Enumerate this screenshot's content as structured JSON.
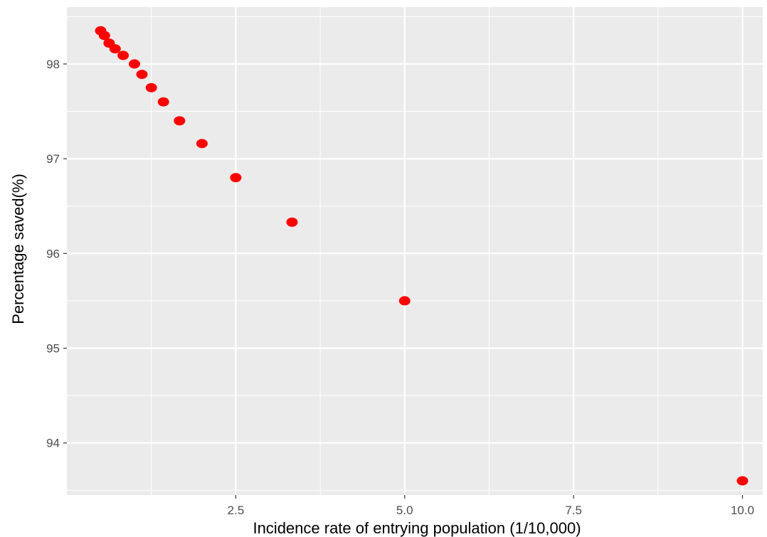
{
  "chart_data": {
    "type": "scatter",
    "title": "",
    "xlabel": "Incidence rate of entrying population (1/10,000)",
    "ylabel": "Percentage saved(%)",
    "xlim": [
      0.0,
      10.3
    ],
    "ylim": [
      93.45,
      98.6
    ],
    "x_ticks": [
      2.5,
      5.0,
      7.5,
      10.0
    ],
    "x_tick_labels": [
      "2.5",
      "5.0",
      "7.5",
      "10.0"
    ],
    "y_ticks": [
      94,
      95,
      96,
      97,
      98
    ],
    "y_tick_labels": [
      "94",
      "95",
      "96",
      "97",
      "98"
    ],
    "grid": true,
    "legend": "none",
    "colors": {
      "panel": "#ebebeb",
      "grid": "#ffffff",
      "point": "#ff0000"
    },
    "series": [
      {
        "x": [
          0.5,
          0.556,
          0.625,
          0.714,
          0.833,
          1.0,
          1.111,
          1.25,
          1.429,
          1.667,
          2.0,
          2.5,
          3.333,
          5.0,
          10.0
        ],
        "values": [
          98.35,
          98.3,
          98.22,
          98.16,
          98.09,
          98.0,
          97.89,
          97.75,
          97.6,
          97.4,
          97.16,
          96.8,
          96.33,
          95.5,
          93.6
        ]
      }
    ]
  }
}
